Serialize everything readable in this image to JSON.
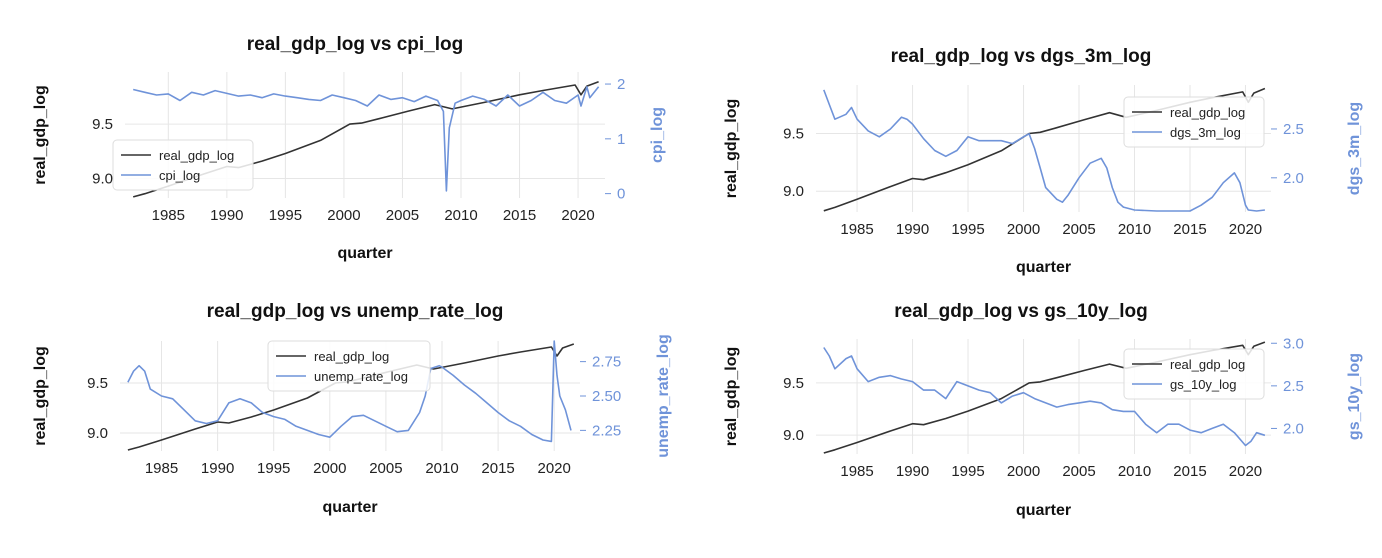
{
  "colors": {
    "primary": "#333333",
    "secondary": "#6f93d9",
    "grid": "#e6e6e6"
  },
  "chart_data": [
    {
      "type": "line",
      "title": "real_gdp_log vs cpi_log",
      "xlabel": "quarter",
      "ylabel": "real_gdp_log",
      "y2label": "cpi_log",
      "xlim": [
        1981.3,
        2022.3
      ],
      "ylim": [
        8.82,
        9.98
      ],
      "y2lim": [
        -0.08,
        2.22
      ],
      "xticks": [
        "1985",
        "1990",
        "1995",
        "2000",
        "2005",
        "2010",
        "2015",
        "2020"
      ],
      "yticks": [
        "9.0",
        "9.5"
      ],
      "y2ticks": [
        "0",
        "1",
        "2"
      ],
      "legend_position": "lower-left",
      "series": [
        {
          "name": "real_gdp_log",
          "axis": "left",
          "x": [
            1982.0,
            1983.0,
            1985.0,
            1988.0,
            1990.0,
            1991.0,
            1993.0,
            1995.0,
            1998.0,
            2000.5,
            2001.5,
            2003.0,
            2005.5,
            2007.75,
            2009.25,
            2012.0,
            2015.0,
            2017.0,
            2019.75,
            2020.25,
            2020.75,
            2021.75
          ],
          "y": [
            8.83,
            8.86,
            8.93,
            9.04,
            9.11,
            9.1,
            9.16,
            9.23,
            9.35,
            9.5,
            9.51,
            9.55,
            9.62,
            9.68,
            9.64,
            9.7,
            9.77,
            9.81,
            9.86,
            9.77,
            9.85,
            9.89
          ]
        },
        {
          "name": "cpi_log",
          "axis": "right",
          "x": [
            1982.0,
            1983.0,
            1984.0,
            1985.0,
            1986.0,
            1987.0,
            1988.0,
            1989.0,
            1990.0,
            1991.0,
            1992.0,
            1993.0,
            1994.0,
            1995.0,
            1996.0,
            1997.0,
            1998.0,
            1999.0,
            2000.0,
            2001.0,
            2002.0,
            2003.0,
            2004.0,
            2005.0,
            2006.0,
            2007.0,
            2008.0,
            2008.5,
            2008.75,
            2009.0,
            2009.5,
            2010.0,
            2011.0,
            2012.0,
            2013.0,
            2014.0,
            2015.0,
            2016.0,
            2017.0,
            2018.0,
            2019.0,
            2020.0,
            2020.25,
            2020.75,
            2021.0,
            2021.75
          ],
          "y": [
            1.9,
            1.85,
            1.8,
            1.82,
            1.7,
            1.85,
            1.8,
            1.88,
            1.83,
            1.78,
            1.8,
            1.75,
            1.82,
            1.78,
            1.75,
            1.72,
            1.7,
            1.8,
            1.75,
            1.7,
            1.6,
            1.8,
            1.72,
            1.75,
            1.68,
            1.78,
            1.7,
            1.5,
            0.05,
            1.2,
            1.65,
            1.7,
            1.78,
            1.72,
            1.6,
            1.8,
            1.6,
            1.7,
            1.85,
            1.7,
            1.65,
            1.8,
            1.6,
            1.95,
            1.75,
            1.95
          ]
        }
      ]
    },
    {
      "type": "line",
      "title": "real_gdp_log vs dgs_3m_log",
      "xlabel": "quarter",
      "ylabel": "real_gdp_log",
      "y2label": "dgs_3m_log",
      "xlim": [
        1981.3,
        2022.3
      ],
      "ylim": [
        8.82,
        9.92
      ],
      "y2lim": [
        1.65,
        2.95
      ],
      "xticks": [
        "1985",
        "1990",
        "1995",
        "2000",
        "2005",
        "2010",
        "2015",
        "2020"
      ],
      "yticks": [
        "9.0",
        "9.5"
      ],
      "y2ticks": [
        "2.0",
        "2.5"
      ],
      "legend_position": "top-right",
      "series": [
        {
          "name": "real_gdp_log",
          "axis": "left",
          "x": [
            1982.0,
            1983.0,
            1985.0,
            1988.0,
            1990.0,
            1991.0,
            1993.0,
            1995.0,
            1998.0,
            2000.5,
            2001.5,
            2003.0,
            2005.5,
            2007.75,
            2009.25,
            2012.0,
            2015.0,
            2017.0,
            2019.75,
            2020.25,
            2020.75,
            2021.75
          ],
          "y": [
            8.83,
            8.86,
            8.93,
            9.04,
            9.11,
            9.1,
            9.16,
            9.23,
            9.35,
            9.5,
            9.51,
            9.55,
            9.62,
            9.68,
            9.64,
            9.7,
            9.77,
            9.81,
            9.86,
            9.77,
            9.85,
            9.89
          ]
        },
        {
          "name": "dgs_3m_log",
          "axis": "right",
          "x": [
            1982.0,
            1982.5,
            1983.0,
            1984.0,
            1984.5,
            1985.0,
            1986.0,
            1987.0,
            1988.0,
            1989.0,
            1989.5,
            1990.0,
            1991.0,
            1992.0,
            1993.0,
            1994.0,
            1995.0,
            1996.0,
            1997.0,
            1998.0,
            1999.0,
            2000.0,
            2000.5,
            2001.0,
            2001.5,
            2002.0,
            2003.0,
            2003.5,
            2004.0,
            2005.0,
            2006.0,
            2007.0,
            2007.5,
            2008.0,
            2008.5,
            2009.0,
            2010.0,
            2012.0,
            2015.0,
            2016.0,
            2017.0,
            2018.0,
            2019.0,
            2019.5,
            2020.0,
            2020.25,
            2021.0,
            2021.75
          ],
          "y": [
            2.9,
            2.75,
            2.6,
            2.65,
            2.72,
            2.6,
            2.48,
            2.42,
            2.5,
            2.62,
            2.6,
            2.55,
            2.4,
            2.28,
            2.22,
            2.28,
            2.42,
            2.38,
            2.38,
            2.38,
            2.35,
            2.42,
            2.45,
            2.3,
            2.1,
            1.9,
            1.78,
            1.75,
            1.82,
            2.0,
            2.15,
            2.2,
            2.1,
            1.9,
            1.75,
            1.7,
            1.67,
            1.66,
            1.66,
            1.72,
            1.8,
            1.95,
            2.05,
            1.95,
            1.72,
            1.67,
            1.66,
            1.67
          ]
        }
      ]
    },
    {
      "type": "line",
      "title": "real_gdp_log vs unemp_rate_log",
      "xlabel": "quarter",
      "ylabel": "real_gdp_log",
      "y2label": "unemp_rate_log",
      "xlim": [
        1981.3,
        2022.3
      ],
      "ylim": [
        8.82,
        9.92
      ],
      "y2lim": [
        2.1,
        2.9
      ],
      "xticks": [
        "1985",
        "1990",
        "1995",
        "2000",
        "2005",
        "2010",
        "2015",
        "2020"
      ],
      "yticks": [
        "9.0",
        "9.5"
      ],
      "y2ticks": [
        "2.25",
        "2.50",
        "2.75"
      ],
      "legend_position": "top-center",
      "series": [
        {
          "name": "real_gdp_log",
          "axis": "left",
          "x": [
            1982.0,
            1983.0,
            1985.0,
            1988.0,
            1990.0,
            1991.0,
            1993.0,
            1995.0,
            1998.0,
            2000.5,
            2001.5,
            2003.0,
            2005.5,
            2007.75,
            2009.25,
            2012.0,
            2015.0,
            2017.0,
            2019.75,
            2020.25,
            2020.75,
            2021.75
          ],
          "y": [
            8.83,
            8.86,
            8.93,
            9.04,
            9.11,
            9.1,
            9.16,
            9.23,
            9.35,
            9.5,
            9.51,
            9.55,
            9.62,
            9.68,
            9.64,
            9.7,
            9.77,
            9.81,
            9.86,
            9.77,
            9.85,
            9.89
          ]
        },
        {
          "name": "unemp_rate_log",
          "axis": "right",
          "x": [
            1982.0,
            1982.5,
            1983.0,
            1983.5,
            1984.0,
            1985.0,
            1986.0,
            1987.0,
            1988.0,
            1989.0,
            1990.0,
            1991.0,
            1992.0,
            1993.0,
            1994.0,
            1995.0,
            1996.0,
            1997.0,
            1998.0,
            1999.0,
            2000.0,
            2001.0,
            2002.0,
            2003.0,
            2004.0,
            2005.0,
            2006.0,
            2007.0,
            2008.0,
            2008.5,
            2009.0,
            2009.75,
            2010.0,
            2011.0,
            2012.0,
            2013.0,
            2014.0,
            2015.0,
            2016.0,
            2017.0,
            2018.0,
            2019.0,
            2019.75,
            2020.0,
            2020.25,
            2020.5,
            2021.0,
            2021.5
          ],
          "y": [
            2.6,
            2.68,
            2.72,
            2.68,
            2.55,
            2.5,
            2.48,
            2.4,
            2.32,
            2.3,
            2.32,
            2.45,
            2.48,
            2.45,
            2.38,
            2.35,
            2.33,
            2.28,
            2.25,
            2.22,
            2.2,
            2.28,
            2.35,
            2.36,
            2.32,
            2.28,
            2.24,
            2.25,
            2.38,
            2.5,
            2.7,
            2.72,
            2.71,
            2.65,
            2.58,
            2.52,
            2.45,
            2.38,
            2.32,
            2.28,
            2.22,
            2.18,
            2.17,
            2.9,
            2.65,
            2.5,
            2.4,
            2.25
          ]
        }
      ]
    },
    {
      "type": "line",
      "title": "real_gdp_log vs gs_10y_log",
      "xlabel": "quarter",
      "ylabel": "real_gdp_log",
      "y2label": "gs_10y_log",
      "xlim": [
        1981.3,
        2022.3
      ],
      "ylim": [
        8.82,
        9.92
      ],
      "y2lim": [
        1.7,
        3.05
      ],
      "xticks": [
        "1985",
        "1990",
        "1995",
        "2000",
        "2005",
        "2010",
        "2015",
        "2020"
      ],
      "yticks": [
        "9.0",
        "9.5"
      ],
      "y2ticks": [
        "2.0",
        "2.5",
        "3.0"
      ],
      "legend_position": "top-right",
      "series": [
        {
          "name": "real_gdp_log",
          "axis": "left",
          "x": [
            1982.0,
            1983.0,
            1985.0,
            1988.0,
            1990.0,
            1991.0,
            1993.0,
            1995.0,
            1998.0,
            2000.5,
            2001.5,
            2003.0,
            2005.5,
            2007.75,
            2009.25,
            2012.0,
            2015.0,
            2017.0,
            2019.75,
            2020.25,
            2020.75,
            2021.75
          ],
          "y": [
            8.83,
            8.86,
            8.93,
            9.04,
            9.11,
            9.1,
            9.16,
            9.23,
            9.35,
            9.5,
            9.51,
            9.55,
            9.62,
            9.68,
            9.64,
            9.7,
            9.77,
            9.81,
            9.86,
            9.77,
            9.85,
            9.89
          ]
        },
        {
          "name": "gs_10y_log",
          "axis": "right",
          "x": [
            1982.0,
            1982.5,
            1983.0,
            1984.0,
            1984.5,
            1985.0,
            1986.0,
            1987.0,
            1988.0,
            1989.0,
            1990.0,
            1991.0,
            1992.0,
            1993.0,
            1994.0,
            1995.0,
            1996.0,
            1997.0,
            1998.0,
            1999.0,
            2000.0,
            2001.0,
            2002.0,
            2003.0,
            2004.0,
            2005.0,
            2006.0,
            2007.0,
            2008.0,
            2009.0,
            2010.0,
            2011.0,
            2012.0,
            2013.0,
            2014.0,
            2015.0,
            2016.0,
            2017.0,
            2018.0,
            2019.0,
            2020.0,
            2020.5,
            2021.0,
            2021.75
          ],
          "y": [
            2.95,
            2.85,
            2.7,
            2.82,
            2.85,
            2.7,
            2.55,
            2.6,
            2.62,
            2.58,
            2.55,
            2.45,
            2.45,
            2.35,
            2.55,
            2.5,
            2.45,
            2.42,
            2.3,
            2.38,
            2.42,
            2.35,
            2.3,
            2.25,
            2.28,
            2.3,
            2.32,
            2.3,
            2.22,
            2.2,
            2.2,
            2.05,
            1.95,
            2.05,
            2.05,
            1.98,
            1.95,
            2.0,
            2.05,
            1.95,
            1.8,
            1.85,
            1.95,
            1.92
          ]
        }
      ]
    }
  ]
}
